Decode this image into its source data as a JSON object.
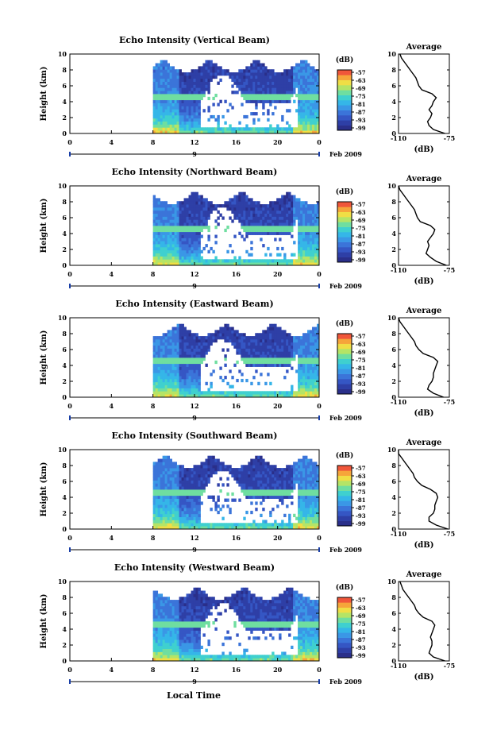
{
  "footer": {
    "xaxis_title": "Local Time"
  },
  "colorbar": {
    "unit": "(dB)",
    "tick_labels": [
      "-57",
      "-63",
      "-69",
      "-75",
      "-81",
      "-87",
      "-93",
      "-99"
    ],
    "colors": [
      "#2a2f8a",
      "#2e3fa6",
      "#3556c4",
      "#3b74d9",
      "#3a97e6",
      "#35b6e8",
      "#3fd0cf",
      "#6fdea0",
      "#b5e466",
      "#f0de45",
      "#f6a53a",
      "#f0563a"
    ]
  },
  "chart_data": [
    {
      "type": "heatmap",
      "title": "Echo Intensity (Vertical Beam)",
      "ylabel": "Height (km)",
      "yticks": [
        "0",
        "2",
        "4",
        "6",
        "8",
        "10"
      ],
      "ylim": [
        0,
        10
      ],
      "xticks": [
        "0",
        "4",
        "8",
        "12",
        "16",
        "20",
        "0"
      ],
      "xlim": [
        0,
        24
      ],
      "date_label": "9",
      "date_suffix": "Feb 2009",
      "data_start_hour": 8,
      "average_profile": {
        "title": "Average",
        "xlabel": "(dB)",
        "xticks": [
          "-110",
          "-75"
        ],
        "xlim": [
          -110,
          -75
        ],
        "yticks": [
          "0",
          "2",
          "4",
          "6",
          "8",
          "10"
        ],
        "height_km": [
          0,
          0.5,
          1,
          1.5,
          2,
          2.5,
          3,
          3.5,
          4,
          4.5,
          5,
          5.5,
          6,
          6.5,
          7,
          7.5,
          8,
          8.5,
          9,
          9.5,
          10
        ],
        "db": [
          -78,
          -86,
          -89,
          -90,
          -88,
          -87,
          -89,
          -87,
          -86,
          -84,
          -87,
          -94,
          -96,
          -97,
          -98,
          -100,
          -102,
          -104,
          -106,
          -108,
          -109
        ]
      }
    },
    {
      "type": "heatmap",
      "title": "Echo Intensity (Northward Beam)",
      "ylabel": "Height (km)",
      "yticks": [
        "0",
        "2",
        "4",
        "6",
        "8",
        "10"
      ],
      "ylim": [
        0,
        10
      ],
      "xticks": [
        "0",
        "4",
        "8",
        "12",
        "16",
        "20",
        "0"
      ],
      "xlim": [
        0,
        24
      ],
      "date_label": "9",
      "date_suffix": "Feb 2009",
      "data_start_hour": 8,
      "average_profile": {
        "title": "Average",
        "xlabel": "(dB)",
        "xticks": [
          "-110",
          "-75"
        ],
        "xlim": [
          -110,
          -75
        ],
        "yticks": [
          "0",
          "2",
          "4",
          "6",
          "8",
          "10"
        ],
        "height_km": [
          0,
          0.5,
          1,
          1.5,
          2,
          2.5,
          3,
          3.5,
          4,
          4.5,
          5,
          5.5,
          6,
          6.5,
          7,
          7.5,
          8,
          8.5,
          9,
          9.5,
          10
        ],
        "db": [
          -77,
          -84,
          -88,
          -91,
          -90,
          -89,
          -90,
          -88,
          -86,
          -85,
          -88,
          -95,
          -97,
          -98,
          -99,
          -101,
          -103,
          -105,
          -107,
          -109,
          -110
        ]
      }
    },
    {
      "type": "heatmap",
      "title": "Echo Intensity (Eastward Beam)",
      "ylabel": "Height (km)",
      "yticks": [
        "0",
        "2",
        "4",
        "6",
        "8",
        "10"
      ],
      "ylim": [
        0,
        10
      ],
      "xticks": [
        "0",
        "4",
        "8",
        "12",
        "16",
        "20",
        "0"
      ],
      "xlim": [
        0,
        24
      ],
      "date_label": "9",
      "date_suffix": "Feb 2009",
      "data_start_hour": 8,
      "average_profile": {
        "title": "Average",
        "xlabel": "(dB)",
        "xticks": [
          "-110",
          "-75"
        ],
        "xlim": [
          -110,
          -75
        ],
        "yticks": [
          "0",
          "2",
          "4",
          "6",
          "8",
          "10"
        ],
        "height_km": [
          0,
          0.5,
          1,
          1.5,
          2,
          2.5,
          3,
          3.5,
          4,
          4.5,
          5,
          5.5,
          6,
          6.5,
          7,
          7.5,
          8,
          8.5,
          9,
          9.5,
          10
        ],
        "db": [
          -79,
          -86,
          -90,
          -89,
          -87,
          -86,
          -86,
          -85,
          -84,
          -83,
          -86,
          -93,
          -96,
          -98,
          -99,
          -101,
          -103,
          -105,
          -107,
          -109,
          -110
        ]
      }
    },
    {
      "type": "heatmap",
      "title": "Echo Intensity (Southward Beam)",
      "ylabel": "Height (km)",
      "yticks": [
        "0",
        "2",
        "4",
        "6",
        "8",
        "10"
      ],
      "ylim": [
        0,
        10
      ],
      "xticks": [
        "0",
        "4",
        "8",
        "12",
        "16",
        "20",
        "0"
      ],
      "xlim": [
        0,
        24
      ],
      "date_label": "9",
      "date_suffix": "Feb 2009",
      "data_start_hour": 8,
      "average_profile": {
        "title": "Average",
        "xlabel": "(dB)",
        "xticks": [
          "-110",
          "-75"
        ],
        "xlim": [
          -110,
          -75
        ],
        "yticks": [
          "0",
          "2",
          "4",
          "6",
          "8",
          "10"
        ],
        "height_km": [
          0,
          0.5,
          1,
          1.5,
          2,
          2.5,
          3,
          3.5,
          4,
          4.5,
          5,
          5.5,
          6,
          6.5,
          7,
          7.5,
          8,
          8.5,
          9,
          9.5,
          10
        ],
        "db": [
          -76,
          -84,
          -89,
          -89,
          -86,
          -85,
          -85,
          -84,
          -83,
          -84,
          -88,
          -94,
          -97,
          -99,
          -100,
          -102,
          -104,
          -106,
          -108,
          -110,
          -110
        ]
      }
    },
    {
      "type": "heatmap",
      "title": "Echo Intensity (Westward Beam)",
      "ylabel": "Height (km)",
      "yticks": [
        "0",
        "2",
        "4",
        "6",
        "8",
        "10"
      ],
      "ylim": [
        0,
        10
      ],
      "xticks": [
        "0",
        "4",
        "8",
        "12",
        "16",
        "20",
        "0"
      ],
      "xlim": [
        0,
        24
      ],
      "date_label": "9",
      "date_suffix": "Feb 2009",
      "data_start_hour": 8,
      "average_profile": {
        "title": "Average",
        "xlabel": "(dB)",
        "xticks": [
          "-110",
          "-75"
        ],
        "xlim": [
          -110,
          -75
        ],
        "yticks": [
          "0",
          "2",
          "4",
          "6",
          "8",
          "10"
        ],
        "height_km": [
          0,
          0.5,
          1,
          1.5,
          2,
          2.5,
          3,
          3.5,
          4,
          4.5,
          5,
          5.5,
          6,
          6.5,
          7,
          7.5,
          8,
          8.5,
          9,
          9.5,
          10
        ],
        "db": [
          -78,
          -86,
          -89,
          -88,
          -87,
          -87,
          -88,
          -87,
          -86,
          -85,
          -87,
          -93,
          -96,
          -98,
          -99,
          -101,
          -103,
          -105,
          -107,
          -108,
          -109
        ]
      }
    }
  ]
}
